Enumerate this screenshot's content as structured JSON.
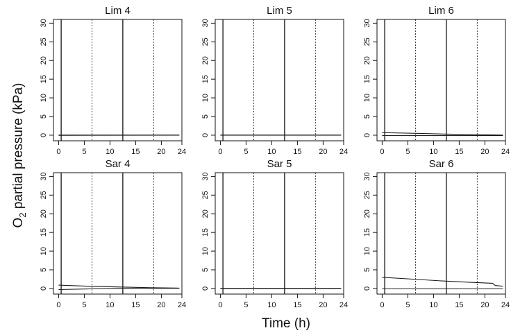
{
  "figure": {
    "ylabel": "O2 partial pressure (kPa)",
    "xlabel": "Time (h)",
    "colors": {
      "line": "#1a1a1a",
      "frame": "#111111",
      "background": "#ffffff"
    }
  },
  "chart_data": [
    {
      "type": "line",
      "title": "Lim 4",
      "xlim": [
        -1,
        24
      ],
      "ylim": [
        -1.5,
        31
      ],
      "xticks": [
        0,
        5,
        10,
        15,
        20,
        24
      ],
      "yticks": [
        0,
        5,
        10,
        15,
        20,
        25,
        30
      ],
      "vlines_solid": [
        0.5,
        12.5
      ],
      "vlines_dashed": [
        6.5,
        18.5
      ],
      "series": [
        {
          "x": [
            0,
            23.5
          ],
          "values": [
            0.05,
            0.05
          ]
        },
        {
          "x": [
            0,
            23.5
          ],
          "values": [
            -0.05,
            0.0
          ]
        }
      ]
    },
    {
      "type": "line",
      "title": "Lim 5",
      "xlim": [
        -1,
        24
      ],
      "ylim": [
        -1.5,
        31
      ],
      "xticks": [
        0,
        5,
        10,
        15,
        20,
        24
      ],
      "yticks": [
        0,
        5,
        10,
        15,
        20,
        25,
        30
      ],
      "vlines_solid": [
        0.5,
        12.5
      ],
      "vlines_dashed": [
        6.5,
        18.5
      ],
      "series": [
        {
          "x": [
            0,
            23.5
          ],
          "values": [
            0.05,
            0.05
          ]
        },
        {
          "x": [
            0,
            23.5
          ],
          "values": [
            0.0,
            0.0
          ]
        }
      ]
    },
    {
      "type": "line",
      "title": "Lim 6",
      "xlim": [
        -1,
        24
      ],
      "ylim": [
        -1.5,
        31
      ],
      "xticks": [
        0,
        5,
        10,
        15,
        20,
        24
      ],
      "yticks": [
        0,
        5,
        10,
        15,
        20,
        25,
        30
      ],
      "vlines_solid": [
        0.5,
        12.5
      ],
      "vlines_dashed": [
        6.5,
        18.5
      ],
      "series": [
        {
          "x": [
            0,
            6,
            12,
            18,
            23.5
          ],
          "values": [
            0.7,
            0.5,
            0.3,
            0.15,
            0.05
          ]
        },
        {
          "x": [
            0,
            23.5
          ],
          "values": [
            -0.1,
            -0.1
          ]
        }
      ]
    },
    {
      "type": "line",
      "title": "Sar 4",
      "xlim": [
        -1,
        24
      ],
      "ylim": [
        -1.5,
        31
      ],
      "xticks": [
        0,
        5,
        10,
        15,
        20,
        24
      ],
      "yticks": [
        0,
        5,
        10,
        15,
        20,
        25,
        30
      ],
      "vlines_solid": [
        0.5,
        12.5
      ],
      "vlines_dashed": [
        6.5,
        18.5
      ],
      "series": [
        {
          "x": [
            0,
            6,
            12,
            18,
            23.5
          ],
          "values": [
            0.9,
            0.6,
            0.4,
            0.2,
            0.1
          ]
        },
        {
          "x": [
            0,
            6,
            12,
            18,
            23.5
          ],
          "values": [
            -0.3,
            -0.1,
            0.05,
            0.05,
            0.05
          ]
        }
      ]
    },
    {
      "type": "line",
      "title": "Sar 5",
      "xlim": [
        -1,
        24
      ],
      "ylim": [
        -1.5,
        31
      ],
      "xticks": [
        0,
        5,
        10,
        15,
        20,
        24
      ],
      "yticks": [
        0,
        5,
        10,
        15,
        20,
        25,
        30
      ],
      "vlines_solid": [
        0.5,
        12.5
      ],
      "vlines_dashed": [
        6.5,
        18.5
      ],
      "series": [
        {
          "x": [
            0,
            23.5
          ],
          "values": [
            0.05,
            0.05
          ]
        },
        {
          "x": [
            0,
            23.5
          ],
          "values": [
            0.0,
            0.0
          ]
        }
      ]
    },
    {
      "type": "line",
      "title": "Sar 6",
      "xlim": [
        -1,
        24
      ],
      "ylim": [
        -1.5,
        31
      ],
      "xticks": [
        0,
        5,
        10,
        15,
        20,
        24
      ],
      "yticks": [
        0,
        5,
        10,
        15,
        20,
        25,
        30
      ],
      "vlines_solid": [
        0.5,
        12.5
      ],
      "vlines_dashed": [
        6.5,
        18.5
      ],
      "series": [
        {
          "x": [
            0,
            6,
            12,
            18,
            21.5,
            22,
            23.5
          ],
          "values": [
            3.0,
            2.5,
            2.0,
            1.6,
            1.4,
            0.8,
            0.6
          ]
        },
        {
          "x": [
            0,
            23.5
          ],
          "values": [
            -0.1,
            -0.1
          ]
        }
      ]
    }
  ]
}
